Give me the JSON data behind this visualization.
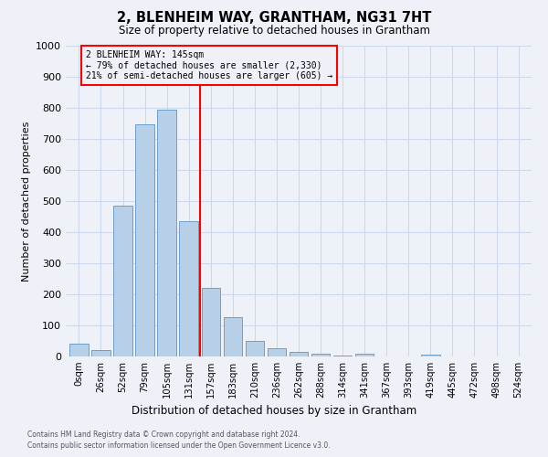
{
  "title": "2, BLENHEIM WAY, GRANTHAM, NG31 7HT",
  "subtitle": "Size of property relative to detached houses in Grantham",
  "xlabel": "Distribution of detached houses by size in Grantham",
  "ylabel": "Number of detached properties",
  "footnote1": "Contains HM Land Registry data © Crown copyright and database right 2024.",
  "footnote2": "Contains public sector information licensed under the Open Government Licence v3.0.",
  "bar_labels": [
    "0sqm",
    "26sqm",
    "52sqm",
    "79sqm",
    "105sqm",
    "131sqm",
    "157sqm",
    "183sqm",
    "210sqm",
    "236sqm",
    "262sqm",
    "288sqm",
    "314sqm",
    "341sqm",
    "367sqm",
    "393sqm",
    "419sqm",
    "445sqm",
    "472sqm",
    "498sqm",
    "524sqm"
  ],
  "bar_values": [
    40,
    20,
    485,
    748,
    793,
    435,
    220,
    127,
    50,
    27,
    15,
    9,
    2,
    8,
    0,
    0,
    7,
    0,
    0,
    0,
    0
  ],
  "bar_color": "#b8cfe8",
  "bar_edge_color": "#6a9fd0",
  "ylim": [
    0,
    1000
  ],
  "yticks": [
    0,
    100,
    200,
    300,
    400,
    500,
    600,
    700,
    800,
    900,
    1000
  ],
  "vline_x": 5.5,
  "vline_color": "red",
  "annotation_line1": "2 BLENHEIM WAY: 145sqm",
  "annotation_line2": "← 79% of detached houses are smaller (2,330)",
  "annotation_line3": "21% of semi-detached houses are larger (605) →",
  "annotation_box_color": "red",
  "grid_color": "#cdd8ea",
  "background_color": "#eef2f8"
}
